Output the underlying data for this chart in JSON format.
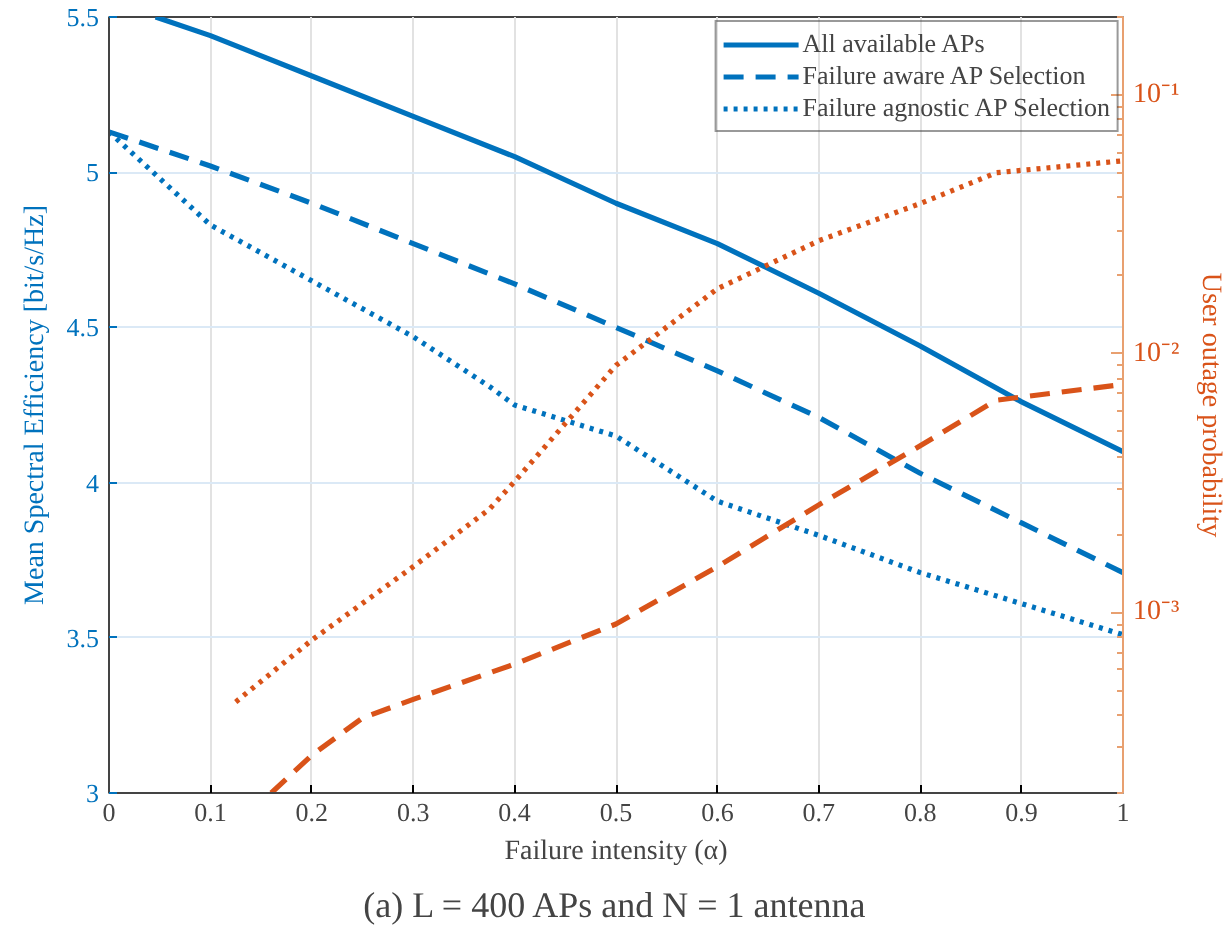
{
  "chart_data": {
    "type": "line",
    "xlabel": "Failure intensity (α)",
    "ylabel": "Mean Spectral Efficiency [bit/s/Hz]",
    "y2label": "User outage probability",
    "annotations": [
      "(a) L = 400 APs and N = 1 antenna"
    ],
    "xlim": [
      0,
      1
    ],
    "xticks": [
      0,
      0.1,
      0.2,
      0.3,
      0.4,
      0.5,
      0.6,
      0.7,
      0.8,
      0.9,
      1
    ],
    "ylim": [
      3,
      5.5
    ],
    "yticks": [
      3,
      3.5,
      4,
      4.5,
      5,
      5.5
    ],
    "y2lim": [
      0.0002,
      0.2
    ],
    "y2ticks": [
      {
        "value": 0.001,
        "label": "10⁻³"
      },
      {
        "value": 0.01,
        "label": "10⁻²"
      },
      {
        "value": 0.1,
        "label": "10⁻¹"
      }
    ],
    "log": "y2",
    "grid": true,
    "legend": "top right",
    "series": [
      {
        "name": "All available APs",
        "color": "#0072bd",
        "line_style": "solid",
        "x": [
          0.046,
          0.1,
          0.2,
          0.3,
          0.4,
          0.5,
          0.6,
          0.7,
          0.8,
          0.9,
          1.0
        ],
        "values": [
          5.5,
          5.44,
          5.31,
          5.18,
          5.05,
          4.9,
          4.77,
          4.61,
          4.44,
          4.26,
          4.1
        ]
      },
      {
        "name": "Failure aware AP Selection",
        "color": "#0072bd",
        "line_style": "dashed",
        "x": [
          0,
          0.1,
          0.2,
          0.3,
          0.4,
          0.5,
          0.6,
          0.7,
          0.8,
          0.9,
          1.0
        ],
        "values": [
          5.13,
          5.02,
          4.9,
          4.77,
          4.64,
          4.5,
          4.36,
          4.21,
          4.03,
          3.87,
          3.71
        ]
      },
      {
        "name": "Failure agnostic AP Selection",
        "color": "#0072bd",
        "line_style": "dotted",
        "x": [
          0,
          0.1,
          0.2,
          0.3,
          0.375,
          0.4,
          0.5,
          0.6,
          0.7,
          0.8,
          0.9,
          1.0
        ],
        "values": [
          5.13,
          4.83,
          4.65,
          4.47,
          4.31,
          4.25,
          4.15,
          3.94,
          3.83,
          3.71,
          3.61,
          3.51
        ]
      },
      {
        "color": "#d95319",
        "line_style": "dashed",
        "axis": "y2",
        "x": [
          0.16,
          0.2,
          0.25,
          0.3,
          0.4,
          0.5,
          0.6,
          0.7,
          0.8,
          0.875,
          1.0
        ],
        "values": [
          0.0002,
          0.00028,
          0.00039,
          0.00046,
          0.00063,
          0.0009,
          0.0015,
          0.0026,
          0.0044,
          0.0066,
          0.0076
        ]
      },
      {
        "color": "#d95319",
        "line_style": "dotted",
        "axis": "y2",
        "x": [
          0.125,
          0.2,
          0.3,
          0.375,
          0.4,
          0.5,
          0.6,
          0.7,
          0.8,
          0.875,
          1.0
        ],
        "values": [
          0.00045,
          0.00078,
          0.0015,
          0.0025,
          0.0032,
          0.009,
          0.0178,
          0.0273,
          0.038,
          0.05,
          0.0556
        ]
      }
    ]
  }
}
